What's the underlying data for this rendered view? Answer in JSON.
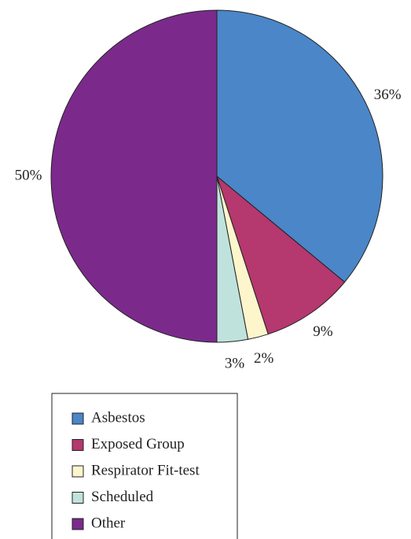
{
  "chart_data": {
    "type": "pie",
    "categories": [
      "Asbestos",
      "Exposed Group",
      "Respirator Fit-test",
      "Scheduled",
      "Other"
    ],
    "values": [
      36,
      9,
      2,
      3,
      50
    ],
    "value_labels": [
      "36%",
      "9%",
      "2%",
      "3%",
      "50%"
    ],
    "colors": [
      "#4a86c8",
      "#b5386f",
      "#fdf6cc",
      "#bfe3dc",
      "#7b2a8c"
    ]
  }
}
